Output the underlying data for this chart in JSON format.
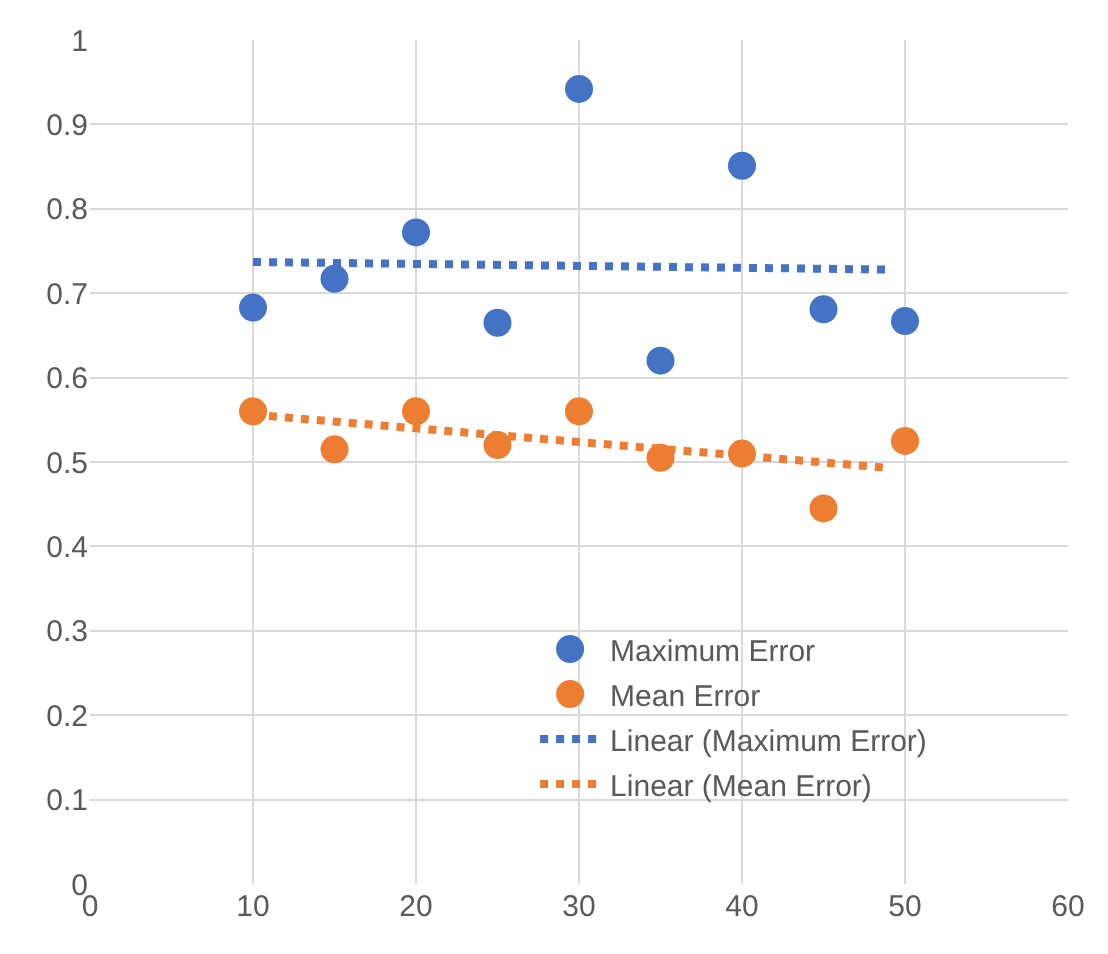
{
  "chart_data": {
    "type": "scatter",
    "xlim": [
      0,
      60
    ],
    "xticks": [
      0,
      10,
      20,
      30,
      40,
      50,
      60
    ],
    "ylim": [
      0,
      1
    ],
    "yticks": [
      0,
      0.1,
      0.2,
      0.3,
      0.4,
      0.5,
      0.6,
      0.7,
      0.8,
      0.9,
      1
    ],
    "grid": true,
    "legend": "bottom right",
    "marker": "circle",
    "series": [
      {
        "name": "Maximum Error",
        "color": "#4472c4",
        "x": [
          10,
          15,
          20,
          25,
          30,
          35,
          40,
          45,
          50
        ],
        "values": [
          0.683,
          0.717,
          0.772,
          0.665,
          0.942,
          0.62,
          0.851,
          0.681,
          0.667
        ]
      },
      {
        "name": "Mean Error",
        "color": "#ed7d31",
        "x": [
          10,
          15,
          20,
          25,
          30,
          35,
          40,
          45,
          50
        ],
        "values": [
          0.56,
          0.515,
          0.56,
          0.52,
          0.56,
          0.505,
          0.51,
          0.445,
          0.525
        ]
      },
      {
        "name": "Linear (Maximum Error)",
        "type": "line",
        "line_style": "dotted",
        "marker": "none",
        "color": "#4472c4",
        "x": [
          10,
          49
        ],
        "values": [
          0.737,
          0.728
        ]
      },
      {
        "name": "Linear (Mean Error)",
        "type": "line",
        "line_style": "dotted",
        "marker": "none",
        "color": "#ed7d31",
        "x": [
          10,
          49
        ],
        "values": [
          0.556,
          0.493
        ]
      }
    ]
  }
}
